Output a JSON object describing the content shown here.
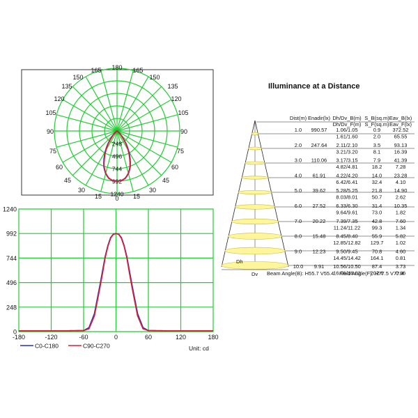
{
  "polar": {
    "angle_labels": [
      "180",
      "165",
      "165",
      "150",
      "150",
      "135",
      "135",
      "120",
      "120",
      "105",
      "105",
      "90",
      "90",
      "75",
      "75",
      "60",
      "60",
      "45",
      "45",
      "30",
      "30",
      "15",
      "15",
      "0"
    ],
    "radial_ticks": [
      "248",
      "496",
      "744",
      "992",
      "1240"
    ],
    "max": 1240,
    "series_colors": [
      "#1f2fcf",
      "#d0203a"
    ]
  },
  "chart_data": {
    "type": "line",
    "unit_label": "Unit: cd",
    "xlim": [
      -180,
      180
    ],
    "ylim": [
      0,
      1240
    ],
    "x_ticks": [
      "-180",
      "-120",
      "-60",
      "0",
      "60",
      "120",
      "180"
    ],
    "y_ticks": [
      "0",
      "248",
      "496",
      "744",
      "992",
      "1240"
    ],
    "grid": true,
    "legend_placement": "bottom-left",
    "series": [
      {
        "name": "C0-C180",
        "color": "#1f2fcf",
        "x": [
          -180,
          -90,
          -60,
          -50,
          -40,
          -30,
          -25,
          -20,
          -15,
          -10,
          -5,
          0,
          5,
          10,
          15,
          20,
          25,
          30,
          40,
          50,
          60,
          90,
          180
        ],
        "y": [
          8,
          8,
          10,
          40,
          180,
          460,
          610,
          760,
          870,
          950,
          985,
          992,
          985,
          950,
          870,
          760,
          610,
          460,
          180,
          40,
          10,
          8,
          8
        ]
      },
      {
        "name": "C90-C270",
        "color": "#d0203a",
        "x": [
          -180,
          -90,
          -60,
          -50,
          -40,
          -30,
          -25,
          -20,
          -15,
          -10,
          -5,
          0,
          5,
          10,
          15,
          20,
          25,
          30,
          40,
          50,
          60,
          90,
          180
        ],
        "y": [
          8,
          8,
          10,
          30,
          160,
          440,
          590,
          750,
          865,
          945,
          985,
          992,
          985,
          945,
          865,
          750,
          590,
          440,
          160,
          30,
          10,
          8,
          8
        ]
      }
    ]
  },
  "cone": {
    "title": "Illuminance at a Distance",
    "headers": [
      "Dist(m)",
      "Enadir(lx)",
      "Dh/Dv_B(m)",
      "S_B(sq.m)",
      "Eav_B(lx)",
      "Dh/Dv_F(m)",
      "S_F(sq.m)",
      "Eav_F(lx)"
    ],
    "rows": [
      {
        "dist": "1.0",
        "enadir": "990.57",
        "dB": "1.06/1.05",
        "sB": "0.9",
        "eB": "372.52",
        "dF": "1.61/1.60",
        "sF": "2.0",
        "eF": "65.55"
      },
      {
        "dist": "2.0",
        "enadir": "247.64",
        "dB": "2.11/2.10",
        "sB": "3.5",
        "eB": "93.13",
        "dF": "3.21/3.20",
        "sF": "8.1",
        "eF": "16.39"
      },
      {
        "dist": "3.0",
        "enadir": "110.06",
        "dB": "3.17/3.15",
        "sB": "7.9",
        "eB": "41.39",
        "dF": "4.82/4.81",
        "sF": "18.2",
        "eF": "7.28"
      },
      {
        "dist": "4.0",
        "enadir": "61.91",
        "dB": "4.22/4.20",
        "sB": "14.0",
        "eB": "23.28",
        "dF": "6.42/6.41",
        "sF": "32.4",
        "eF": "4.10"
      },
      {
        "dist": "5.0",
        "enadir": "39.62",
        "dB": "5.28/5.25",
        "sB": "21.8",
        "eB": "14.90",
        "dF": "8.03/8.01",
        "sF": "50.7",
        "eF": "2.62"
      },
      {
        "dist": "6.0",
        "enadir": "27.52",
        "dB": "6.33/6.30",
        "sB": "31.4",
        "eB": "10.35",
        "dF": "9.64/9.61",
        "sF": "73.0",
        "eF": "1.82"
      },
      {
        "dist": "7.0",
        "enadir": "20.22",
        "dB": "7.39/7.35",
        "sB": "42.8",
        "eB": "7.60",
        "dF": "11.24/11.22",
        "sF": "99.3",
        "eF": "1.34"
      },
      {
        "dist": "8.0",
        "enadir": "15.48",
        "dB": "8.45/8.40",
        "sB": "55.9",
        "eB": "5.82",
        "dF": "12.85/12.82",
        "sF": "129.7",
        "eF": "1.02"
      },
      {
        "dist": "9.0",
        "enadir": "12.23",
        "dB": "9.50/9.45",
        "sB": "70.8",
        "eB": "4.60",
        "dF": "14.45/14.42",
        "sF": "164.1",
        "eF": "0.81"
      },
      {
        "dist": "10.0",
        "enadir": "9.91",
        "dB": "10.56/10.50",
        "sB": "87.4",
        "eB": "3.73",
        "dF": "16.06/16.02",
        "sF": "202.6",
        "eF": "0.66"
      }
    ],
    "dh_label": "Dh",
    "dv_label": "Dv",
    "beam_angle": "Beam Angle(B): H55.7 V55.4",
    "field_angle": "Field Angle(F): H77.5 V77.4"
  }
}
